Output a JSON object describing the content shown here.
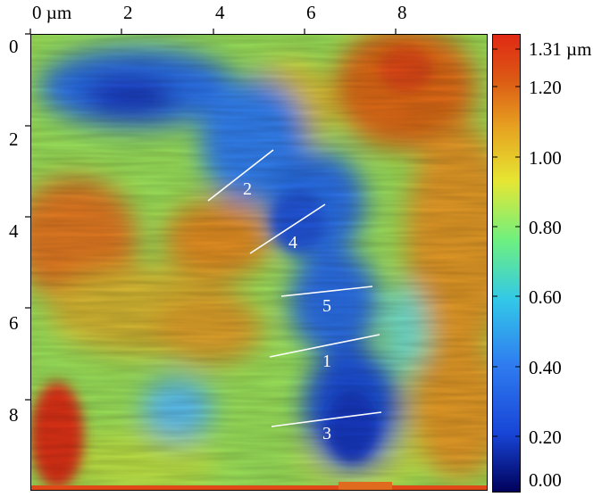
{
  "x_axis": {
    "tick_labels": [
      "0 µm",
      "2",
      "4",
      "6",
      "8"
    ]
  },
  "y_axis": {
    "tick_labels": [
      "0",
      "2",
      "4",
      "6",
      "8"
    ]
  },
  "colorbar": {
    "tick_labels": [
      "1.31 µm",
      "1.20",
      "1.00",
      "0.80",
      "0.60",
      "0.40",
      "0.20",
      "0.00"
    ],
    "colors": [
      "#00005a",
      "#1846d8",
      "#2f7df0",
      "#32c8e8",
      "#6ef080",
      "#e6e632",
      "#e6a020",
      "#dc5a14",
      "#e02814"
    ]
  },
  "profile_lines": [
    {
      "label": "2"
    },
    {
      "label": "4"
    },
    {
      "label": "5"
    },
    {
      "label": "1"
    },
    {
      "label": "3"
    }
  ]
}
